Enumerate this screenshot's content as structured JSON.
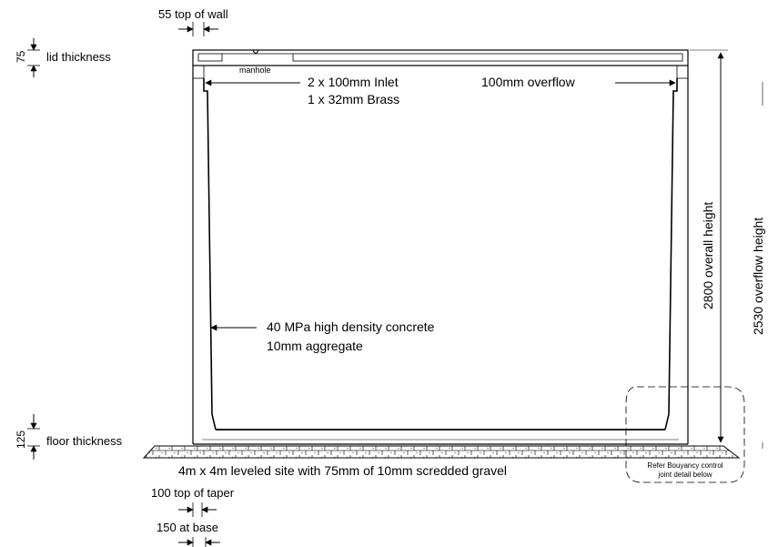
{
  "labels": {
    "top_of_wall": "55 top of wall",
    "lid_thickness_value": "75",
    "lid_thickness": "lid thickness",
    "manhole": "manhole",
    "inlet_line1": "2 x 100mm Inlet",
    "inlet_line2": "1 x 32mm Brass",
    "overflow": "100mm overflow",
    "overall_height": "2800 overall height",
    "overflow_height": "2530 overflow height",
    "concrete_line1": "40 MPa high density concrete",
    "concrete_line2": "10mm aggregate",
    "floor_thickness_value": "125",
    "floor_thickness": "floor thickness",
    "site": "4m x 4m leveled site with 75mm of 10mm scredded gravel",
    "buoyancy_line1": "Refer Bouyancy control",
    "buoyancy_line2": "joint detail below",
    "top_of_taper": "100 top of taper",
    "at_base": "150 at base"
  }
}
